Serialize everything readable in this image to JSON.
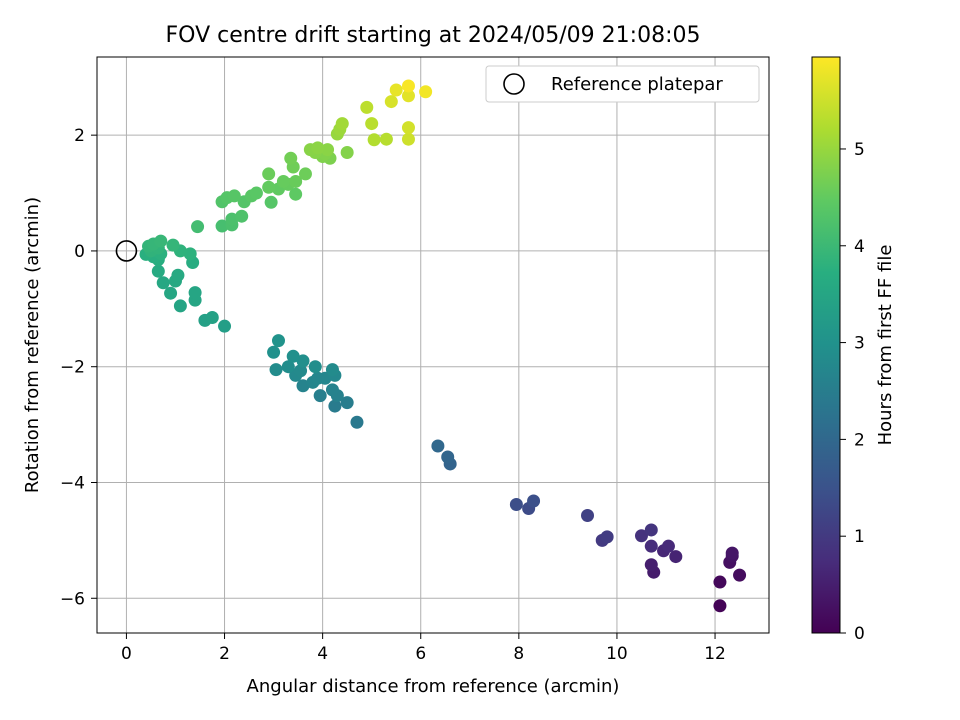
{
  "chart_data": {
    "type": "scatter",
    "title": "FOV centre drift starting at 2024/05/09 21:08:05",
    "xlabel": "Angular distance from reference (arcmin)",
    "ylabel": "Rotation from reference (arcmin)",
    "xlim": [
      -0.6,
      13.1
    ],
    "ylim": [
      -6.6,
      3.35
    ],
    "xticks": [
      0,
      2,
      4,
      6,
      8,
      10,
      12
    ],
    "yticks": [
      -6,
      -4,
      -2,
      0,
      2
    ],
    "grid": true,
    "legend": {
      "position": "top-right",
      "entries": [
        "Reference platepar"
      ]
    },
    "colorbar": {
      "label": "Hours from first FF file",
      "colormap": "viridis",
      "min": 0,
      "max": 5.95,
      "ticks": [
        0,
        1,
        2,
        3,
        4,
        5
      ]
    },
    "reference_point": {
      "x": 0,
      "y": 0
    },
    "points": [
      {
        "x": 12.1,
        "y": -6.13,
        "t": 0.05
      },
      {
        "x": 12.1,
        "y": -5.72,
        "t": 0.12
      },
      {
        "x": 12.5,
        "y": -5.6,
        "t": 0.2
      },
      {
        "x": 12.3,
        "y": -5.38,
        "t": 0.25
      },
      {
        "x": 12.35,
        "y": -5.27,
        "t": 0.3
      },
      {
        "x": 12.35,
        "y": -5.22,
        "t": 0.35
      },
      {
        "x": 10.75,
        "y": -5.55,
        "t": 0.45
      },
      {
        "x": 10.7,
        "y": -5.42,
        "t": 0.5
      },
      {
        "x": 11.2,
        "y": -5.28,
        "t": 0.6
      },
      {
        "x": 10.95,
        "y": -5.18,
        "t": 0.65
      },
      {
        "x": 11.05,
        "y": -5.1,
        "t": 0.7
      },
      {
        "x": 10.7,
        "y": -5.1,
        "t": 0.75
      },
      {
        "x": 10.5,
        "y": -4.92,
        "t": 0.85
      },
      {
        "x": 10.7,
        "y": -4.82,
        "t": 0.9
      },
      {
        "x": 9.7,
        "y": -5.0,
        "t": 1.0
      },
      {
        "x": 9.8,
        "y": -4.94,
        "t": 1.05
      },
      {
        "x": 9.4,
        "y": -4.57,
        "t": 1.15
      },
      {
        "x": 8.2,
        "y": -4.45,
        "t": 1.35
      },
      {
        "x": 7.95,
        "y": -4.38,
        "t": 1.4
      },
      {
        "x": 8.3,
        "y": -4.32,
        "t": 1.45
      },
      {
        "x": 6.6,
        "y": -3.68,
        "t": 1.9
      },
      {
        "x": 6.55,
        "y": -3.56,
        "t": 1.95
      },
      {
        "x": 6.35,
        "y": -3.37,
        "t": 2.0
      },
      {
        "x": 4.7,
        "y": -2.96,
        "t": 2.4
      },
      {
        "x": 4.25,
        "y": -2.68,
        "t": 2.45
      },
      {
        "x": 4.5,
        "y": -2.62,
        "t": 2.5
      },
      {
        "x": 3.95,
        "y": -2.5,
        "t": 2.55
      },
      {
        "x": 4.3,
        "y": -2.5,
        "t": 2.6
      },
      {
        "x": 4.2,
        "y": -2.4,
        "t": 2.62
      },
      {
        "x": 3.6,
        "y": -2.33,
        "t": 2.65
      },
      {
        "x": 3.8,
        "y": -2.27,
        "t": 2.68
      },
      {
        "x": 4.05,
        "y": -2.2,
        "t": 2.7
      },
      {
        "x": 3.9,
        "y": -2.2,
        "t": 2.72
      },
      {
        "x": 4.25,
        "y": -2.15,
        "t": 2.75
      },
      {
        "x": 3.45,
        "y": -2.15,
        "t": 2.78
      },
      {
        "x": 3.55,
        "y": -2.07,
        "t": 2.8
      },
      {
        "x": 4.2,
        "y": -2.05,
        "t": 2.82
      },
      {
        "x": 3.05,
        "y": -2.05,
        "t": 2.85
      },
      {
        "x": 3.3,
        "y": -2.0,
        "t": 2.88
      },
      {
        "x": 3.85,
        "y": -2.0,
        "t": 2.9
      },
      {
        "x": 3.6,
        "y": -1.9,
        "t": 2.92
      },
      {
        "x": 3.4,
        "y": -1.82,
        "t": 2.95
      },
      {
        "x": 3.0,
        "y": -1.75,
        "t": 2.98
      },
      {
        "x": 3.1,
        "y": -1.55,
        "t": 3.02
      },
      {
        "x": 2.0,
        "y": -1.3,
        "t": 3.3
      },
      {
        "x": 1.6,
        "y": -1.2,
        "t": 3.35
      },
      {
        "x": 1.75,
        "y": -1.15,
        "t": 3.38
      },
      {
        "x": 1.1,
        "y": -0.95,
        "t": 3.45
      },
      {
        "x": 1.4,
        "y": -0.85,
        "t": 3.48
      },
      {
        "x": 1.4,
        "y": -0.72,
        "t": 3.5
      },
      {
        "x": 0.9,
        "y": -0.73,
        "t": 3.52
      },
      {
        "x": 0.75,
        "y": -0.55,
        "t": 3.55
      },
      {
        "x": 1.0,
        "y": -0.52,
        "t": 3.57
      },
      {
        "x": 1.05,
        "y": -0.42,
        "t": 3.6
      },
      {
        "x": 0.65,
        "y": -0.35,
        "t": 3.62
      },
      {
        "x": 1.35,
        "y": -0.2,
        "t": 3.68
      },
      {
        "x": 0.65,
        "y": -0.15,
        "t": 3.7
      },
      {
        "x": 0.55,
        "y": -0.1,
        "t": 3.73
      },
      {
        "x": 0.4,
        "y": -0.06,
        "t": 3.75
      },
      {
        "x": 0.7,
        "y": -0.05,
        "t": 3.77
      },
      {
        "x": 1.3,
        "y": -0.05,
        "t": 3.8
      },
      {
        "x": 1.1,
        "y": 0.0,
        "t": 3.82
      },
      {
        "x": 0.5,
        "y": 0.0,
        "t": 3.84
      },
      {
        "x": 0.65,
        "y": 0.05,
        "t": 3.86
      },
      {
        "x": 0.45,
        "y": 0.08,
        "t": 3.88
      },
      {
        "x": 0.95,
        "y": 0.1,
        "t": 3.9
      },
      {
        "x": 0.55,
        "y": 0.12,
        "t": 3.92
      },
      {
        "x": 0.7,
        "y": 0.17,
        "t": 3.95
      },
      {
        "x": 1.45,
        "y": 0.42,
        "t": 4.1
      },
      {
        "x": 1.95,
        "y": 0.43,
        "t": 4.15
      },
      {
        "x": 2.15,
        "y": 0.45,
        "t": 4.2
      },
      {
        "x": 2.15,
        "y": 0.55,
        "t": 4.22
      },
      {
        "x": 2.35,
        "y": 0.6,
        "t": 4.25
      },
      {
        "x": 2.95,
        "y": 0.84,
        "t": 4.35
      },
      {
        "x": 1.95,
        "y": 0.85,
        "t": 4.3
      },
      {
        "x": 2.4,
        "y": 0.85,
        "t": 4.32
      },
      {
        "x": 2.05,
        "y": 0.92,
        "t": 4.34
      },
      {
        "x": 2.2,
        "y": 0.95,
        "t": 4.36
      },
      {
        "x": 2.55,
        "y": 0.95,
        "t": 4.38
      },
      {
        "x": 2.65,
        "y": 1.0,
        "t": 4.4
      },
      {
        "x": 3.45,
        "y": 0.98,
        "t": 4.45
      },
      {
        "x": 3.1,
        "y": 1.07,
        "t": 4.48
      },
      {
        "x": 2.9,
        "y": 1.1,
        "t": 4.5
      },
      {
        "x": 3.3,
        "y": 1.15,
        "t": 4.52
      },
      {
        "x": 3.2,
        "y": 1.2,
        "t": 4.54
      },
      {
        "x": 3.45,
        "y": 1.2,
        "t": 4.56
      },
      {
        "x": 2.9,
        "y": 1.33,
        "t": 4.58
      },
      {
        "x": 3.65,
        "y": 1.33,
        "t": 4.6
      },
      {
        "x": 3.4,
        "y": 1.45,
        "t": 4.62
      },
      {
        "x": 3.35,
        "y": 1.6,
        "t": 4.65
      },
      {
        "x": 4.15,
        "y": 1.6,
        "t": 4.75
      },
      {
        "x": 4.0,
        "y": 1.63,
        "t": 4.78
      },
      {
        "x": 4.05,
        "y": 1.68,
        "t": 4.8
      },
      {
        "x": 4.5,
        "y": 1.7,
        "t": 4.82
      },
      {
        "x": 3.85,
        "y": 1.7,
        "t": 4.84
      },
      {
        "x": 3.75,
        "y": 1.75,
        "t": 4.86
      },
      {
        "x": 4.1,
        "y": 1.75,
        "t": 4.88
      },
      {
        "x": 3.9,
        "y": 1.78,
        "t": 4.9
      },
      {
        "x": 4.3,
        "y": 2.02,
        "t": 5.0
      },
      {
        "x": 4.35,
        "y": 2.1,
        "t": 5.05
      },
      {
        "x": 4.4,
        "y": 2.2,
        "t": 5.1
      },
      {
        "x": 5.05,
        "y": 1.92,
        "t": 5.25
      },
      {
        "x": 5.3,
        "y": 1.93,
        "t": 5.3
      },
      {
        "x": 5.0,
        "y": 2.2,
        "t": 5.32
      },
      {
        "x": 4.9,
        "y": 2.48,
        "t": 5.35
      },
      {
        "x": 5.75,
        "y": 1.93,
        "t": 5.5
      },
      {
        "x": 5.75,
        "y": 2.13,
        "t": 5.55
      },
      {
        "x": 5.4,
        "y": 2.58,
        "t": 5.6
      },
      {
        "x": 5.75,
        "y": 2.68,
        "t": 5.7
      },
      {
        "x": 5.5,
        "y": 2.78,
        "t": 5.75
      },
      {
        "x": 6.1,
        "y": 2.75,
        "t": 5.85
      },
      {
        "x": 5.75,
        "y": 2.85,
        "t": 5.9
      }
    ]
  }
}
